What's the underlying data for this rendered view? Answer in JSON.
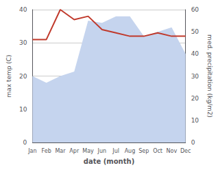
{
  "chart_data": {
    "type": "line",
    "categories": [
      "Jan",
      "Feb",
      "Mar",
      "Apr",
      "May",
      "Jun",
      "Jul",
      "Aug",
      "Sep",
      "Oct",
      "Nov",
      "Dec"
    ],
    "series": [
      {
        "type": "area",
        "color": "#c5d4ee",
        "values": [
          30,
          27,
          30,
          32,
          55,
          54,
          57,
          57,
          48,
          50,
          52,
          40
        ],
        "axis": "y2"
      },
      {
        "type": "line",
        "color": "#c0392b",
        "values": [
          31,
          31,
          40,
          37,
          38,
          34,
          33,
          32,
          32,
          33,
          32,
          32
        ]
      }
    ],
    "xlabel": "date (month)",
    "ylabel": "max temp (C)",
    "y2label": "med. precipitation (kg/m2)",
    "ylim": [
      0,
      40
    ],
    "yticks": [
      0,
      10,
      20,
      30,
      40
    ],
    "y2lim": [
      0,
      60
    ],
    "y2ticks": [
      0,
      10,
      20,
      30,
      40,
      50,
      60
    ],
    "grid": true
  }
}
